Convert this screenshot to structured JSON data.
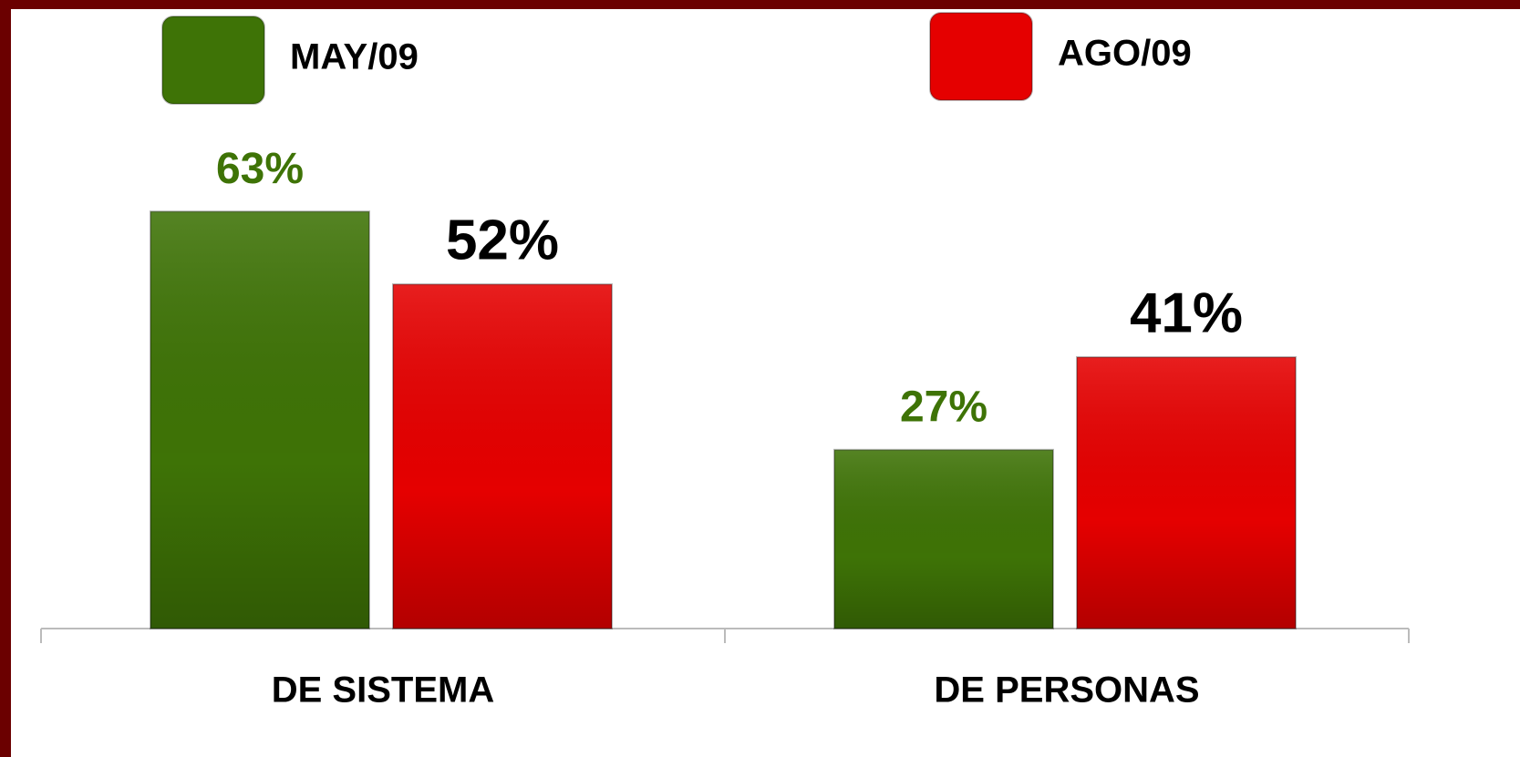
{
  "chart_data": {
    "type": "bar",
    "categories": [
      "DE SISTEMA",
      "DE PERSONAS"
    ],
    "series": [
      {
        "name": "MAY/09",
        "color": "#3e7306",
        "label_color": "#3e7306",
        "values": [
          63,
          27
        ],
        "value_labels": [
          "63%",
          "27%"
        ]
      },
      {
        "name": "AGO/09",
        "color": "#e50000",
        "label_color": "#000000",
        "values": [
          52,
          41
        ],
        "value_labels": [
          "52%",
          "41%"
        ]
      }
    ],
    "ylim": [
      0,
      90
    ]
  }
}
